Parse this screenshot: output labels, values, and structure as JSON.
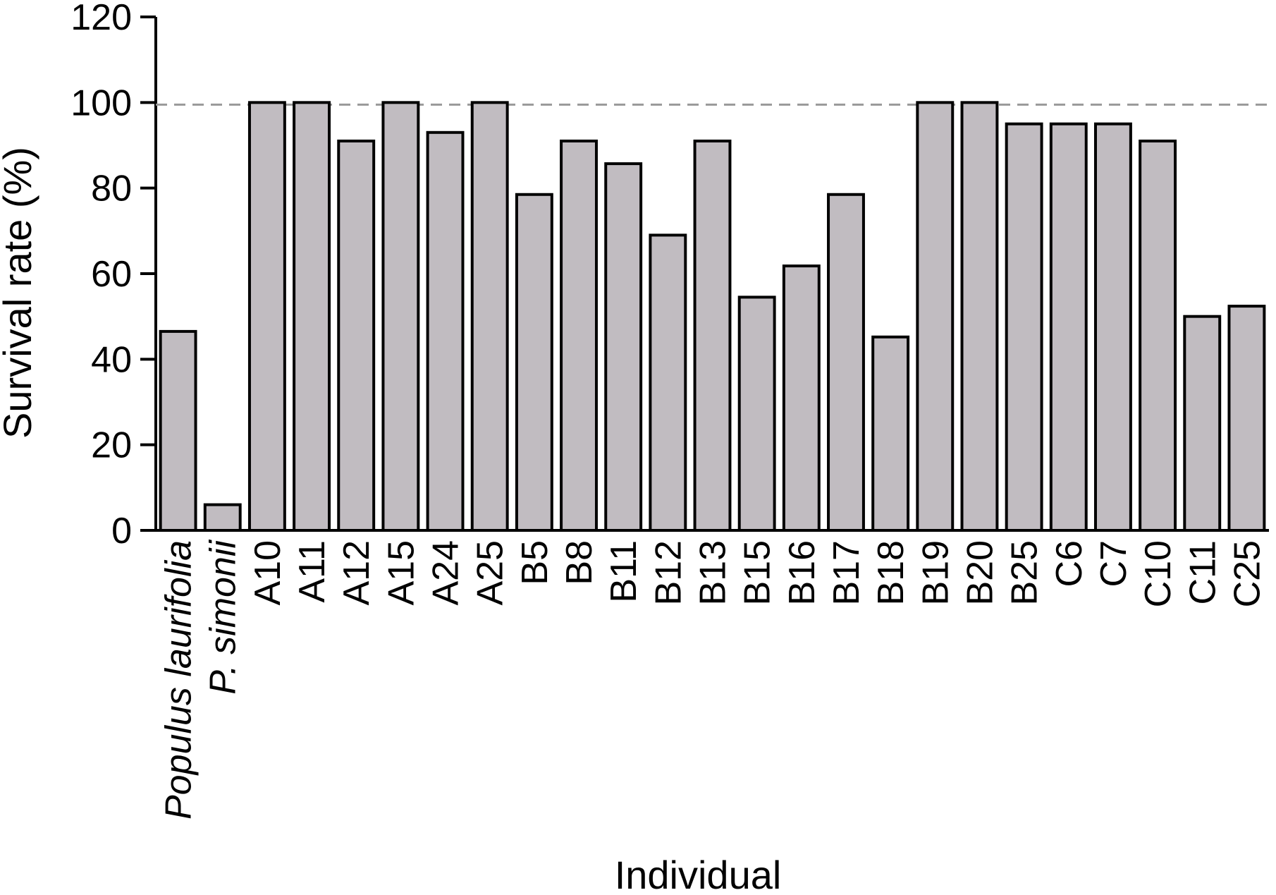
{
  "chart_data": {
    "type": "bar",
    "xlabel": "Individual",
    "ylabel": "Survival rate (%)",
    "ylim": [
      0,
      120
    ],
    "yticks": [
      0,
      20,
      40,
      60,
      80,
      100,
      120
    ],
    "grid": false,
    "reference_line": {
      "y": 99.5,
      "style": "dashed"
    },
    "colors": {
      "bar_fill": "#c1bcc1",
      "bar_stroke": "#000000",
      "reference_line": "#999999"
    },
    "italic_categories": [
      "Populus laurifolia",
      "P. simonii"
    ],
    "categories": [
      "Populus laurifolia",
      "P. simonii",
      "A10",
      "A11",
      "A12",
      "A15",
      "A24",
      "A25",
      "B5",
      "B8",
      "B11",
      "B12",
      "B13",
      "B15",
      "B16",
      "B17",
      "B18",
      "B19",
      "B20",
      "B25",
      "C6",
      "C7",
      "C10",
      "C11",
      "C25"
    ],
    "values": [
      46.5,
      6,
      100,
      100,
      91,
      100,
      93,
      100,
      78.5,
      91,
      85.7,
      69,
      91,
      54.5,
      61.8,
      78.5,
      45.2,
      100,
      100,
      95,
      95,
      95,
      91,
      50,
      52.4
    ]
  }
}
